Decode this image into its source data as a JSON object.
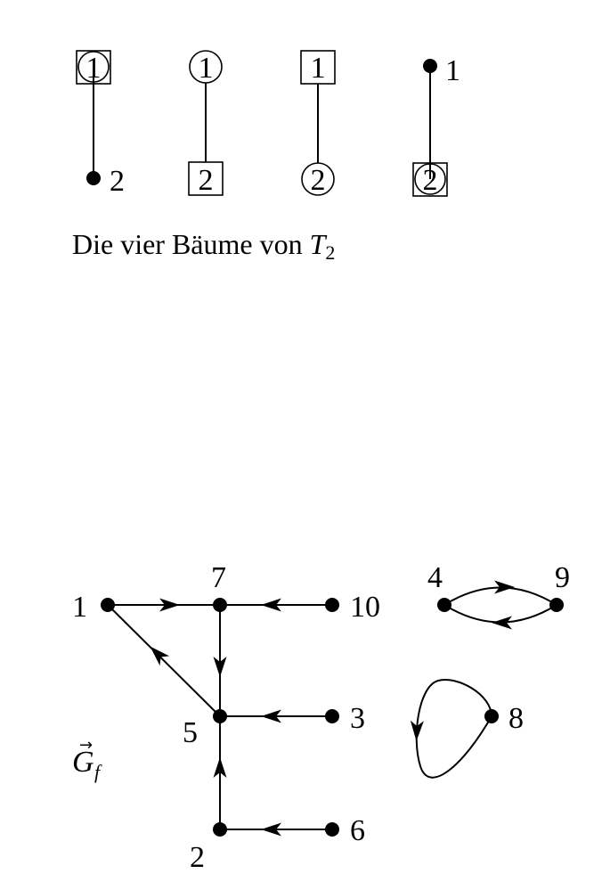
{
  "top_figure": {
    "caption_text": "Die vier Bäume von ",
    "caption_symbol": "T",
    "caption_subscript": "2",
    "trees": [
      {
        "top_label": "1",
        "bottom_label": "2"
      },
      {
        "top_label": "1",
        "bottom_label": "2"
      },
      {
        "top_label": "1",
        "bottom_label": "2"
      },
      {
        "top_label": "1",
        "bottom_label": "2"
      }
    ]
  },
  "bottom_figure": {
    "graph_label_symbol": "G",
    "graph_label_arrow": "→",
    "graph_label_subscript": "f",
    "node_labels": {
      "n1": "1",
      "n2": "2",
      "n3": "3",
      "n4": "4",
      "n5": "5",
      "n6": "6",
      "n7": "7",
      "n8": "8",
      "n9": "9",
      "n10": "10"
    }
  }
}
